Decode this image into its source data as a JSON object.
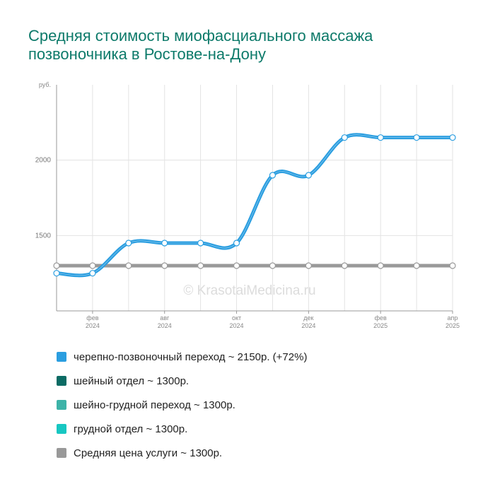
{
  "title_line1": "Средняя стоимость миофасциального массажа",
  "title_line2": "позвоночника в Ростове-на-Дону",
  "watermark": "© KrasotaiMedicina.ru",
  "colors": {
    "title": "#0d7a6a",
    "series_main": "#2b9ee0",
    "series_neck": "#0b6b64",
    "series_cervicothoracic": "#3db3a8",
    "series_thoracic": "#17c7c2",
    "series_average": "#999999"
  },
  "chart_data": {
    "type": "line",
    "ylabel": "руб.",
    "ylim": [
      1000,
      2500
    ],
    "y_ticks": [
      "1500",
      "2000"
    ],
    "x_ticks": [
      {
        "month": "фев",
        "year": "2024"
      },
      {
        "month": "авг",
        "year": "2024"
      },
      {
        "month": "окт",
        "year": "2024"
      },
      {
        "month": "дек",
        "year": "2024"
      },
      {
        "month": "фев",
        "year": "2025"
      },
      {
        "month": "апр",
        "year": "2025"
      }
    ],
    "x": [
      "2024-01",
      "2024-02",
      "2024-07",
      "2024-08",
      "2024-09",
      "2024-10",
      "2024-11",
      "2024-12",
      "2025-01",
      "2025-02",
      "2025-03",
      "2025-04"
    ],
    "series": [
      {
        "name": "черепно-позвоночный переход",
        "color": "#2b9ee0",
        "values": [
          1250,
          1250,
          1450,
          1450,
          1450,
          1450,
          1900,
          1900,
          2150,
          2150,
          2150,
          2150
        ]
      },
      {
        "name": "Средняя цена услуги",
        "color": "#999999",
        "values": [
          1300,
          1300,
          1300,
          1300,
          1300,
          1300,
          1300,
          1300,
          1300,
          1300,
          1300,
          1300
        ]
      }
    ],
    "grid": true
  },
  "legend": [
    {
      "label": "черепно-позвоночный переход ~ 2150р. (+72%)",
      "color": "#2b9ee0"
    },
    {
      "label": "шейный отдел ~ 1300р.",
      "color": "#0b6b64"
    },
    {
      "label": "шейно-грудной переход ~ 1300р.",
      "color": "#3db3a8"
    },
    {
      "label": "грудной отдел ~ 1300р.",
      "color": "#17c7c2"
    },
    {
      "label": "Средняя цена услуги ~ 1300р.",
      "color": "#999999"
    }
  ]
}
